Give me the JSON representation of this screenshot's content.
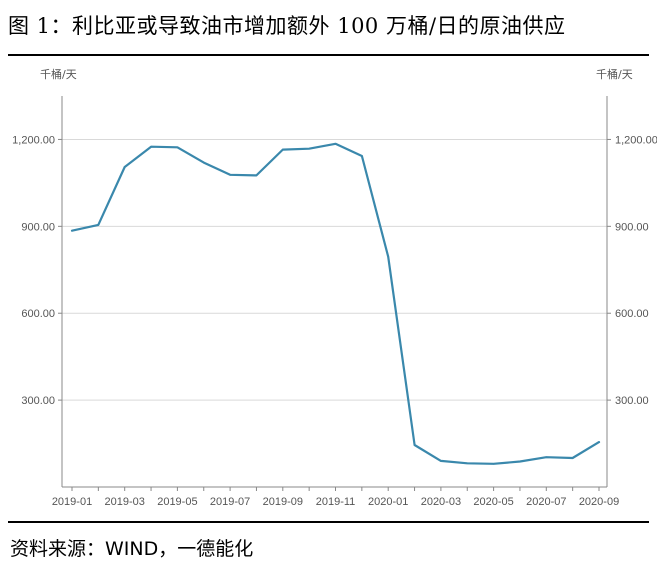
{
  "header": {
    "title": "图 1：利比亚或导致油市增加额外 100 万桶/日的原油供应"
  },
  "footer": {
    "source": "资料来源：WIND，一德能化"
  },
  "chart_data": {
    "type": "line",
    "left_unit": "千桶/天",
    "right_unit": "千桶/天",
    "ylim": [
      0,
      1350
    ],
    "y_ticks": [
      300,
      600,
      900,
      1200
    ],
    "y_tick_labels": [
      "300.00",
      "600.00",
      "900.00",
      "1,200.00"
    ],
    "x": [
      "2019-01",
      "2019-02",
      "2019-03",
      "2019-04",
      "2019-05",
      "2019-06",
      "2019-07",
      "2019-08",
      "2019-09",
      "2019-10",
      "2019-11",
      "2019-12",
      "2020-01",
      "2020-02",
      "2020-03",
      "2020-04",
      "2020-05",
      "2020-06",
      "2020-07",
      "2020-08",
      "2020-09"
    ],
    "x_tick_labels": [
      "2019-01",
      "2019-03",
      "2019-05",
      "2019-07",
      "2019-09",
      "2019-11",
      "2020-01",
      "2020-03",
      "2020-05",
      "2020-07",
      "2020-09"
    ],
    "series": [
      {
        "values": [
          885,
          905,
          1105,
          1175,
          1173,
          1120,
          1078,
          1076,
          1165,
          1168,
          1185,
          1143,
          795,
          145,
          90,
          82,
          80,
          88,
          103,
          100,
          155
        ],
        "color": "#3a88ac"
      }
    ],
    "grid": true
  }
}
